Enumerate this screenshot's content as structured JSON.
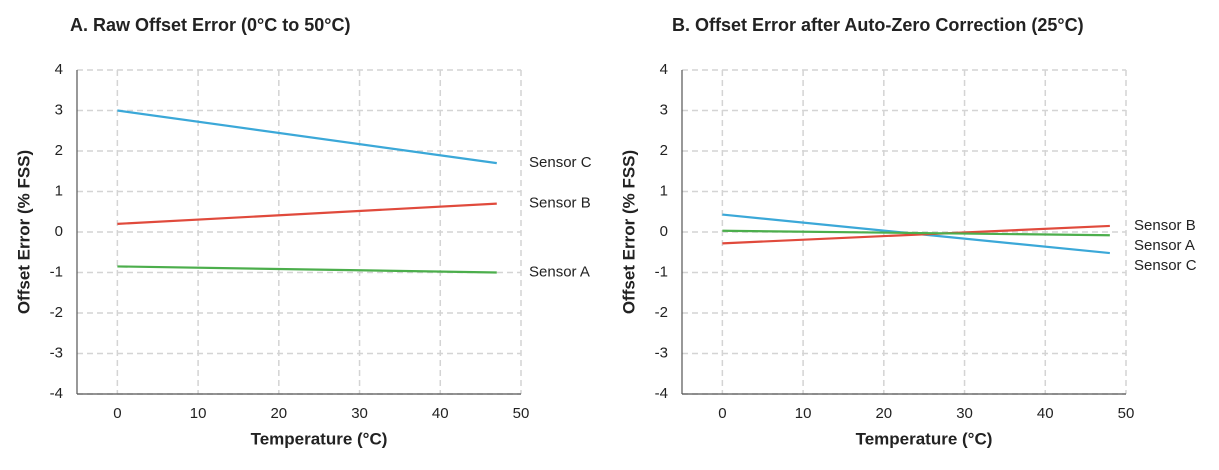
{
  "chart_data": [
    {
      "type": "line",
      "title": "A. Raw Offset Error (0°C to 50°C)",
      "x_label": "Temperature (°C)",
      "y_label": "Offset Error (% FSS)",
      "x": [
        0,
        47
      ],
      "series": [
        {
          "name": "Sensor C",
          "color": "#3ba8d8",
          "values": [
            3.0,
            1.7
          ]
        },
        {
          "name": "Sensor B",
          "color": "#e04a3c",
          "values": [
            0.2,
            0.7
          ]
        },
        {
          "name": "Sensor A",
          "color": "#4cae4c",
          "values": [
            -0.85,
            -1.0
          ]
        }
      ],
      "xlim": [
        -5,
        50
      ],
      "xticks": [
        0,
        10,
        20,
        30,
        40,
        50
      ],
      "ylim": [
        -4,
        4
      ],
      "yticks": [
        -4,
        -3,
        -2,
        -1,
        0,
        1,
        2,
        3,
        4
      ],
      "grid": true
    },
    {
      "type": "line",
      "title": "B. Offset Error after Auto-Zero Correction (25°C)",
      "x_label": "Temperature (°C)",
      "y_label": "Offset Error (% FSS)",
      "x": [
        0,
        48
      ],
      "series": [
        {
          "name": "Sensor C",
          "color": "#3ba8d8",
          "values": [
            0.43,
            -0.52
          ]
        },
        {
          "name": "Sensor B",
          "color": "#e04a3c",
          "values": [
            -0.28,
            0.15
          ]
        },
        {
          "name": "Sensor A",
          "color": "#4cae4c",
          "values": [
            0.03,
            -0.08
          ]
        }
      ],
      "xlim": [
        -5,
        50
      ],
      "xticks": [
        0,
        10,
        20,
        30,
        40,
        50
      ],
      "ylim": [
        -4,
        4
      ],
      "yticks": [
        -4,
        -3,
        -2,
        -1,
        0,
        1,
        2,
        3,
        4
      ],
      "grid": true
    }
  ]
}
